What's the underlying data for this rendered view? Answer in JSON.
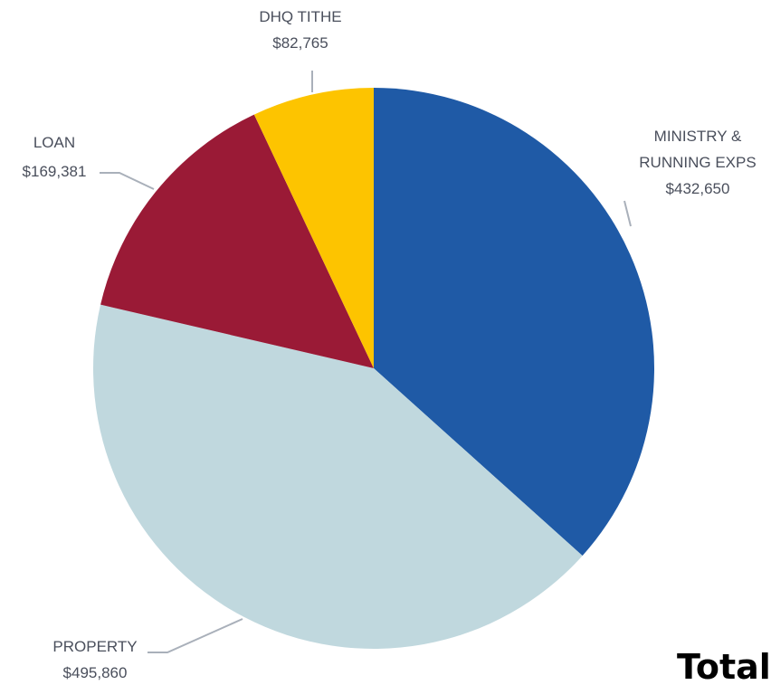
{
  "chart_data": {
    "type": "pie",
    "categories": [
      "MINISTRY & RUNNING EXPS",
      "PROPERTY",
      "LOAN",
      "DHQ TITHE"
    ],
    "values": [
      432650,
      495860,
      169381,
      82765
    ],
    "value_labels": [
      "$432,650",
      "$495,860",
      "$169,381",
      "$82,765"
    ],
    "colors": [
      "#1f5aa6",
      "#c0d8de",
      "#9a1a36",
      "#fdc400"
    ],
    "start_angle_deg": 0,
    "direction": "clockwise",
    "labels": [
      {
        "lines": [
          "MINISTRY &",
          "RUNNING EXPS"
        ],
        "value": "$432,650"
      },
      {
        "lines": [
          "PROPERTY"
        ],
        "value": "$495,860"
      },
      {
        "lines": [
          "LOAN"
        ],
        "value": "$169,381"
      },
      {
        "lines": [
          "DHQ TITHE"
        ],
        "value": "$82,765"
      }
    ]
  },
  "footer": {
    "total_label": "Total"
  }
}
